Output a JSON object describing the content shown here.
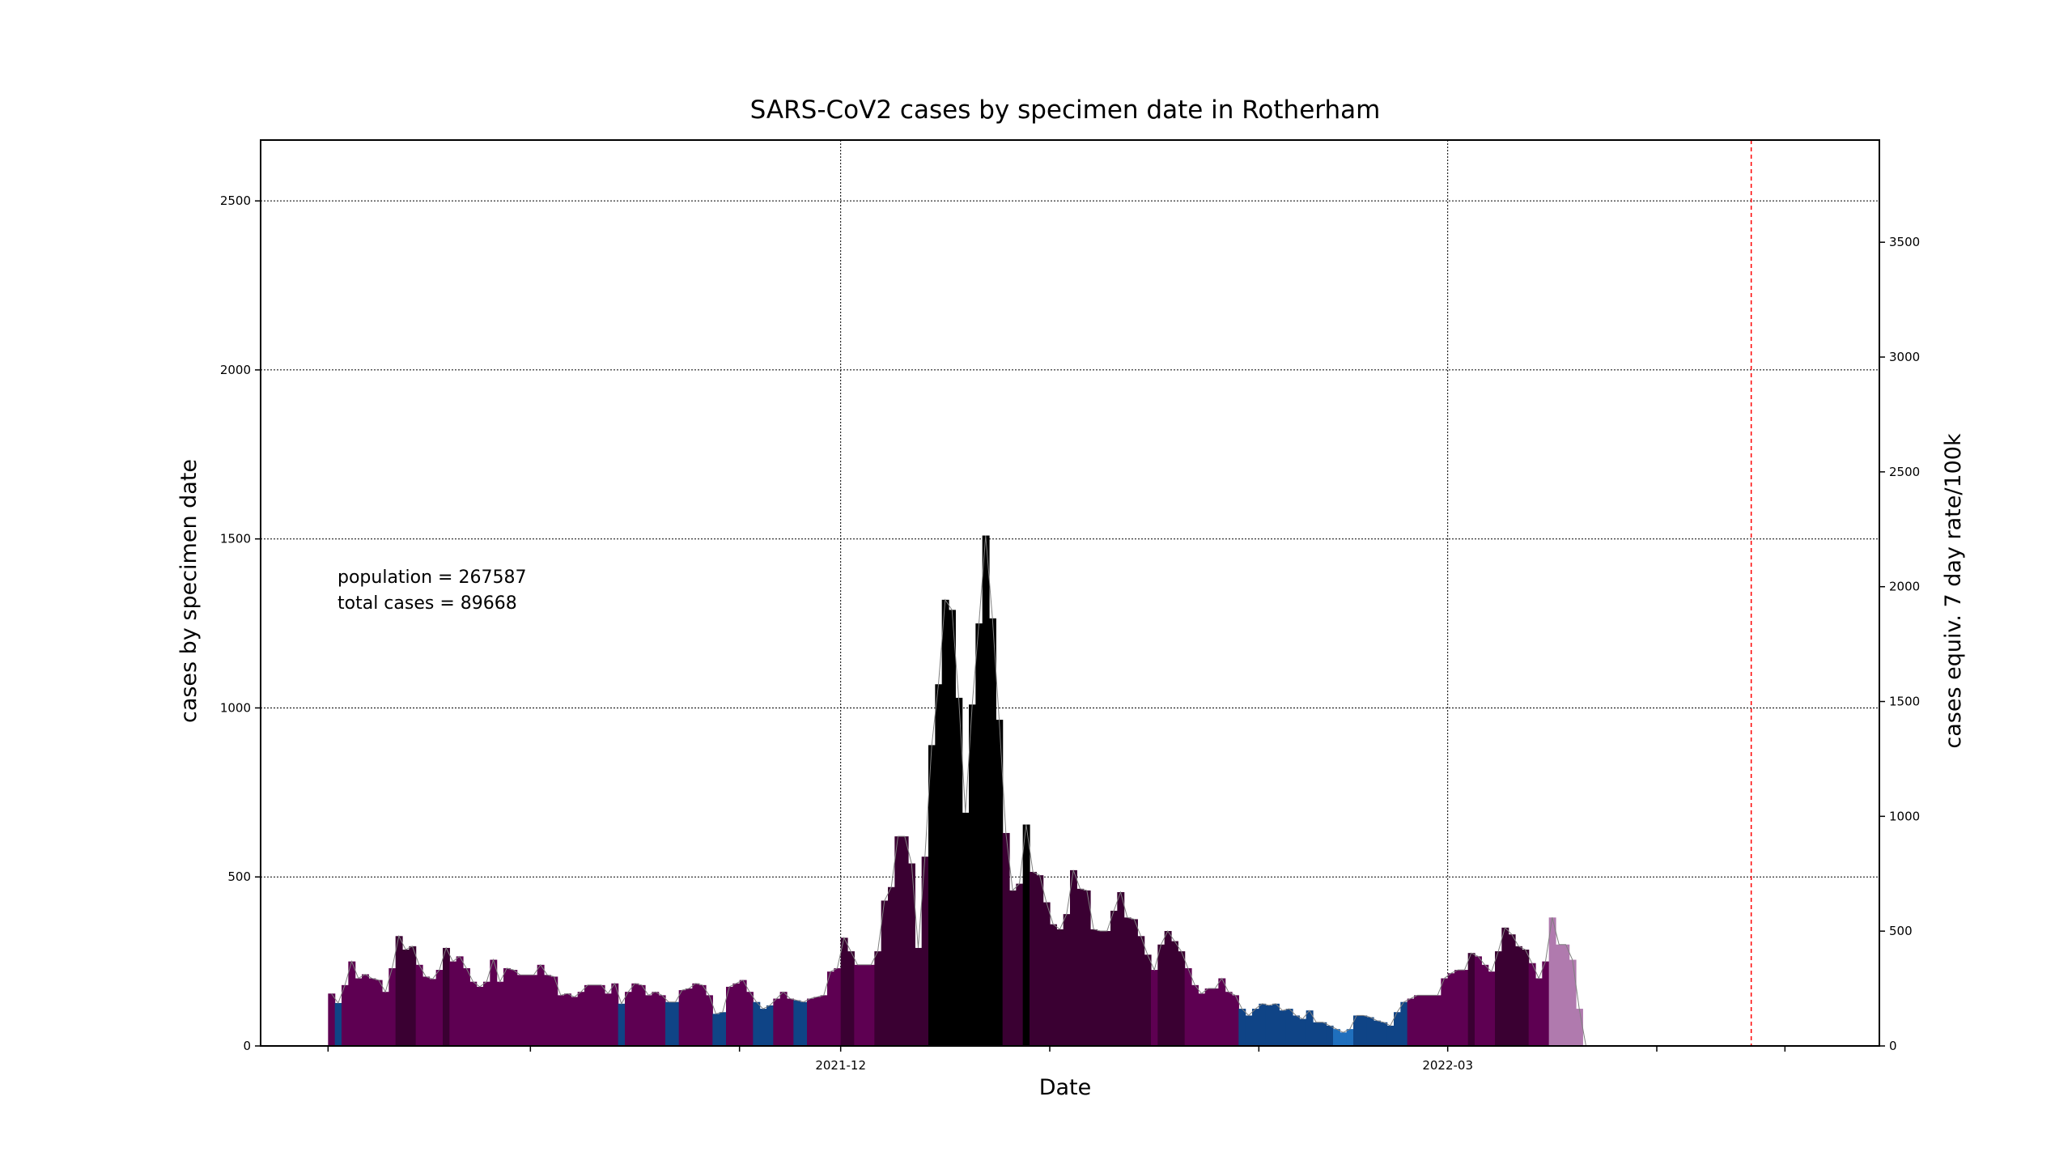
{
  "chart_data": {
    "type": "bar",
    "title": "SARS-CoV2 cases by specimen date in Rotherham",
    "xlabel": "Date",
    "ylabel": "cases by specimen date",
    "y2label": "cases equiv. 7 day rate/100k",
    "ylim": [
      0,
      2680
    ],
    "y2lim": [
      0,
      3945
    ],
    "xlim": [
      "2021-09-06",
      "2022-05-04"
    ],
    "yticks": [
      0,
      500,
      1000,
      1500,
      2000,
      2500
    ],
    "y2ticks": [
      0,
      500,
      1000,
      1500,
      2000,
      2500,
      3000,
      3500
    ],
    "xticks": [
      {
        "date": "2021-09-16",
        "label": ""
      },
      {
        "date": "2021-10-16",
        "label": ""
      },
      {
        "date": "2021-11-16",
        "label": ""
      },
      {
        "date": "2021-12-01",
        "label": "2021-12"
      },
      {
        "date": "2022-01-01",
        "label": ""
      },
      {
        "date": "2022-02-01",
        "label": ""
      },
      {
        "date": "2022-03-01",
        "label": "2022-03"
      },
      {
        "date": "2022-04-01",
        "label": ""
      },
      {
        "date": "2022-04-20",
        "label": ""
      }
    ],
    "grid": true,
    "marker_date": "2022-04-15",
    "start_date": "2021-09-16",
    "values": [
      155,
      127,
      180,
      250,
      200,
      212,
      200,
      195,
      160,
      230,
      325,
      285,
      295,
      240,
      205,
      198,
      225,
      290,
      250,
      265,
      230,
      190,
      175,
      190,
      255,
      190,
      230,
      225,
      210,
      210,
      210,
      240,
      210,
      205,
      150,
      155,
      145,
      160,
      180,
      180,
      180,
      155,
      185,
      125,
      160,
      185,
      180,
      150,
      160,
      150,
      130,
      130,
      165,
      170,
      185,
      180,
      150,
      95,
      100,
      175,
      185,
      195,
      160,
      130,
      110,
      120,
      140,
      160,
      140,
      135,
      130,
      140,
      145,
      150,
      220,
      230,
      320,
      280,
      240,
      240,
      240,
      280,
      430,
      470,
      620,
      620,
      540,
      290,
      560,
      890,
      1070,
      1320,
      1290,
      1030,
      690,
      1010,
      1250,
      1510,
      1265,
      965,
      630,
      460,
      480,
      655,
      515,
      505,
      425,
      360,
      345,
      390,
      520,
      465,
      460,
      345,
      340,
      340,
      400,
      455,
      380,
      375,
      325,
      270,
      225,
      300,
      340,
      310,
      280,
      230,
      180,
      155,
      170,
      170,
      200,
      160,
      150,
      110,
      90,
      110,
      125,
      120,
      125,
      105,
      110,
      90,
      80,
      105,
      70,
      70,
      60,
      50,
      40,
      50,
      90,
      90,
      85,
      75,
      70,
      60,
      100,
      130,
      140,
      150,
      150,
      150,
      150,
      200,
      215,
      225,
      225,
      275,
      265,
      240,
      220,
      280,
      350,
      330,
      295,
      285,
      245,
      200,
      250,
      380,
      300,
      300,
      255,
      110,
      0
    ],
    "bar_colors": [
      "#5e0052",
      "#0f4486",
      "#0b0b44",
      "#3a0032",
      "#000000",
      "#b07aae"
    ],
    "annotations": [
      "population = 267587",
      "total cases = 89668"
    ]
  }
}
